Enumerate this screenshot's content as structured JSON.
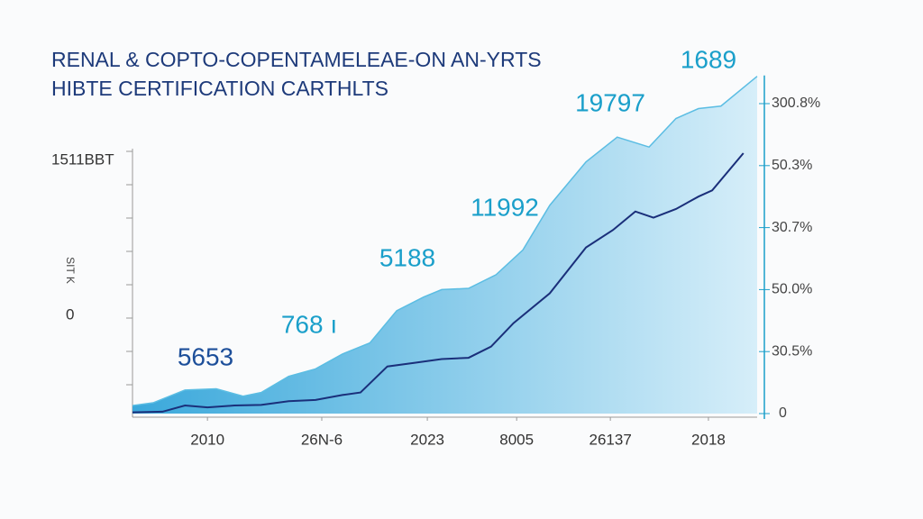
{
  "chart_data": {
    "type": "area",
    "title": [
      "RENAL & COPTO-COPENTAMELEAE-ON AN-YRTS",
      "HIBTE CERTIFICATION CARTHLTS"
    ],
    "left_labels": [
      "1511BBT",
      "0"
    ],
    "ylabel": "SIT K",
    "xlim": [
      0,
      100
    ],
    "xticks": [
      {
        "value": 12,
        "label": "2010"
      },
      {
        "value": 30.3,
        "label": "26N-6"
      },
      {
        "value": 47.2,
        "label": "2023"
      },
      {
        "value": 61.5,
        "label": "8005"
      },
      {
        "value": 76.5,
        "label": "26137"
      },
      {
        "value": 92.2,
        "label": "2018"
      }
    ],
    "ylim": [
      0,
      280
    ],
    "yticks": [
      0,
      {
        "value": 50,
        "label": "30.5%"
      },
      {
        "value": 100,
        "label": "50.0%"
      },
      {
        "value": 150,
        "label": "30.7%"
      },
      {
        "value": 200,
        "label": "50.3%"
      },
      {
        "value": 250,
        "label": "300.8%"
      }
    ],
    "series": [
      {
        "kind": "area",
        "color": "#5bbde3",
        "x": [
          0,
          3.3,
          8.4,
          13.4,
          17.7,
          20.6,
          25,
          29.3,
          33.6,
          38,
          42.3,
          46.6,
          49.5,
          53.8,
          58.2,
          62.5,
          66.8,
          72.6,
          77.6,
          82.7,
          87,
          90.6,
          94.2,
          100
        ],
        "values": [
          6.5,
          8.7,
          19,
          20,
          14,
          17,
          30,
          36,
          48,
          57,
          83,
          94,
          100,
          101,
          112,
          132,
          168,
          203,
          223,
          215,
          238,
          246,
          248,
          272
        ]
      },
      {
        "kind": "line",
        "color": "#1a2f7a",
        "x": [
          0,
          4.8,
          8.4,
          12,
          16.3,
          20.6,
          25,
          29.3,
          33.6,
          36.5,
          40.8,
          45.2,
          49.5,
          53.8,
          57.4,
          61,
          66.8,
          72.6,
          76.9,
          80.5,
          83.4,
          87,
          90.6,
          92.8,
          97.8
        ],
        "values": [
          1,
          1.5,
          6.5,
          5,
          6.5,
          7,
          10,
          11,
          15,
          17,
          38,
          41,
          44,
          45,
          54,
          73,
          97,
          134,
          148,
          163,
          158,
          165,
          175,
          180,
          210
        ]
      }
    ],
    "annotations": [
      {
        "text": "5653",
        "color": "#1d4f9a"
      },
      {
        "text": "768 ı",
        "color": "#1a9fca"
      },
      {
        "text": "5188",
        "color": "#1a9fca"
      },
      {
        "text": "11992",
        "color": "#1a9fca"
      },
      {
        "text": "19797",
        "color": "#1a9fca"
      },
      {
        "text": "1689",
        "color": "#1a9fca"
      }
    ]
  }
}
